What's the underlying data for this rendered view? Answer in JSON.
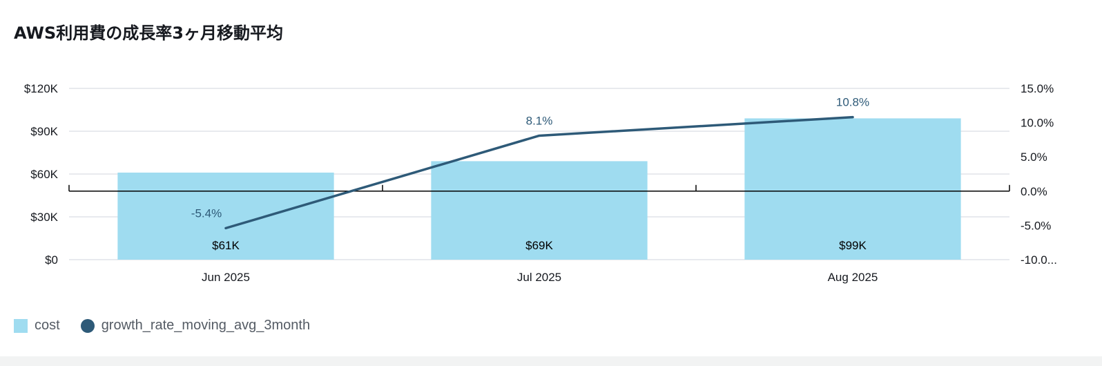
{
  "chart_data": {
    "type": "bar",
    "title": "AWS利用費の成長率3ヶ月移動平均",
    "categories": [
      "Jun 2025",
      "Jul 2025",
      "Aug 2025"
    ],
    "series": [
      {
        "name": "cost",
        "kind": "bar",
        "axis": "left",
        "values": [
          61000,
          69000,
          99000
        ],
        "labels": [
          "$61K",
          "$69K",
          "$99K"
        ],
        "color": "#9fdcf0"
      },
      {
        "name": "growth_rate_moving_avg_3month",
        "kind": "line",
        "axis": "right",
        "values": [
          -5.4,
          8.1,
          10.8
        ],
        "labels": [
          "-5.4%",
          "8.1%",
          "10.8%"
        ],
        "color": "#2e5a78"
      }
    ],
    "y_left": {
      "ylim": [
        0,
        120000
      ],
      "ticks": [
        0,
        30000,
        60000,
        90000,
        120000
      ],
      "tick_labels": [
        "$0",
        "$30K",
        "$60K",
        "$90K",
        "$120K"
      ]
    },
    "y_right": {
      "ylim": [
        -10,
        15
      ],
      "ticks": [
        -10,
        -5,
        0,
        5,
        10,
        15
      ],
      "tick_labels": [
        "-10.0...",
        "-5.0%",
        "0.0%",
        "5.0%",
        "10.0%",
        "15.0%"
      ]
    },
    "grid": true,
    "legend_position": "bottom-left"
  }
}
